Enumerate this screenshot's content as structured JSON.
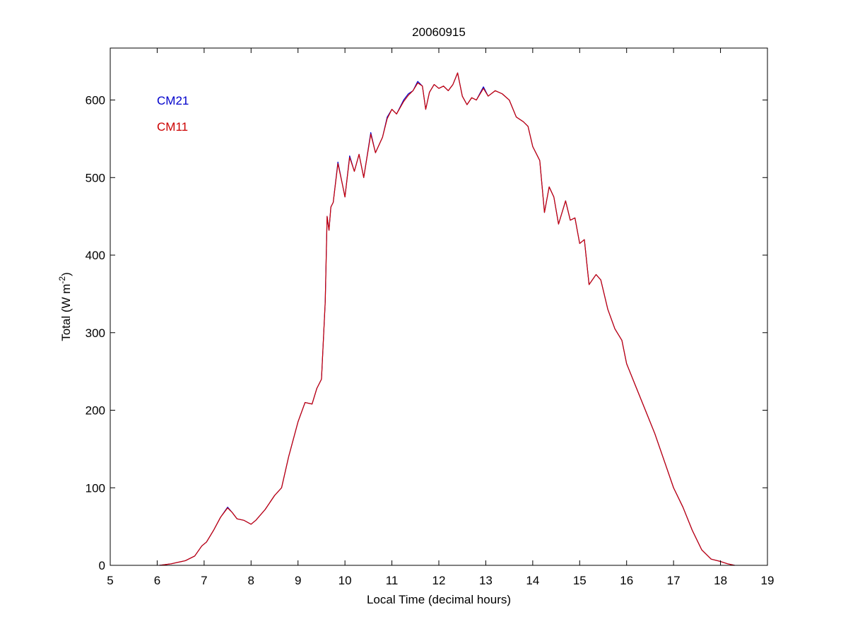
{
  "chart_data": {
    "type": "line",
    "title": "20060915",
    "xlabel": "Local Time (decimal hours)",
    "ylabel_main": "Total (W m",
    "ylabel_sup": "-2",
    "ylabel_close": ")",
    "xlim": [
      5,
      19
    ],
    "ylim": [
      0,
      667
    ],
    "xticks": [
      5,
      6,
      7,
      8,
      9,
      10,
      11,
      12,
      13,
      14,
      15,
      16,
      17,
      18,
      19
    ],
    "yticks": [
      0,
      100,
      200,
      300,
      400,
      500,
      600
    ],
    "grid": false,
    "legend_placement": "top-left",
    "series": [
      {
        "name": "CM21",
        "color": "#0000cc",
        "points": [
          [
            6.05,
            0
          ],
          [
            6.3,
            2
          ],
          [
            6.6,
            6
          ],
          [
            6.8,
            12
          ],
          [
            6.95,
            25
          ],
          [
            7.05,
            30
          ],
          [
            7.2,
            45
          ],
          [
            7.35,
            62
          ],
          [
            7.5,
            75
          ],
          [
            7.6,
            68
          ],
          [
            7.7,
            60
          ],
          [
            7.85,
            58
          ],
          [
            8.0,
            53
          ],
          [
            8.1,
            58
          ],
          [
            8.3,
            72
          ],
          [
            8.5,
            90
          ],
          [
            8.65,
            100
          ],
          [
            8.8,
            140
          ],
          [
            9.0,
            185
          ],
          [
            9.15,
            210
          ],
          [
            9.3,
            208
          ],
          [
            9.4,
            228
          ],
          [
            9.5,
            240
          ],
          [
            9.58,
            340
          ],
          [
            9.62,
            450
          ],
          [
            9.66,
            432
          ],
          [
            9.7,
            462
          ],
          [
            9.75,
            468
          ],
          [
            9.85,
            520
          ],
          [
            9.95,
            490
          ],
          [
            10.0,
            475
          ],
          [
            10.1,
            528
          ],
          [
            10.2,
            508
          ],
          [
            10.3,
            530
          ],
          [
            10.4,
            500
          ],
          [
            10.55,
            558
          ],
          [
            10.65,
            532
          ],
          [
            10.8,
            552
          ],
          [
            10.9,
            578
          ],
          [
            11.0,
            588
          ],
          [
            11.1,
            582
          ],
          [
            11.25,
            600
          ],
          [
            11.35,
            608
          ],
          [
            11.45,
            612
          ],
          [
            11.55,
            624
          ],
          [
            11.65,
            618
          ],
          [
            11.72,
            588
          ],
          [
            11.8,
            610
          ],
          [
            11.9,
            620
          ],
          [
            12.0,
            615
          ],
          [
            12.1,
            618
          ],
          [
            12.2,
            612
          ],
          [
            12.3,
            620
          ],
          [
            12.4,
            635
          ],
          [
            12.5,
            605
          ],
          [
            12.6,
            594
          ],
          [
            12.7,
            603
          ],
          [
            12.8,
            600
          ],
          [
            12.95,
            617
          ],
          [
            13.05,
            605
          ],
          [
            13.2,
            612
          ],
          [
            13.35,
            608
          ],
          [
            13.5,
            600
          ],
          [
            13.65,
            578
          ],
          [
            13.8,
            572
          ],
          [
            13.9,
            566
          ],
          [
            14.0,
            540
          ],
          [
            14.15,
            522
          ],
          [
            14.25,
            455
          ],
          [
            14.35,
            488
          ],
          [
            14.45,
            475
          ],
          [
            14.55,
            440
          ],
          [
            14.7,
            470
          ],
          [
            14.8,
            445
          ],
          [
            14.9,
            448
          ],
          [
            15.0,
            415
          ],
          [
            15.1,
            420
          ],
          [
            15.2,
            362
          ],
          [
            15.35,
            375
          ],
          [
            15.45,
            368
          ],
          [
            15.6,
            330
          ],
          [
            15.75,
            305
          ],
          [
            15.9,
            290
          ],
          [
            16.0,
            260
          ],
          [
            16.2,
            230
          ],
          [
            16.4,
            200
          ],
          [
            16.6,
            170
          ],
          [
            16.8,
            135
          ],
          [
            17.0,
            100
          ],
          [
            17.2,
            75
          ],
          [
            17.4,
            45
          ],
          [
            17.6,
            20
          ],
          [
            17.8,
            8
          ],
          [
            18.0,
            5
          ],
          [
            18.15,
            2
          ],
          [
            18.3,
            0
          ]
        ]
      },
      {
        "name": "CM11",
        "color": "#cc0000",
        "points": [
          [
            6.05,
            0
          ],
          [
            6.3,
            2
          ],
          [
            6.6,
            6
          ],
          [
            6.8,
            12
          ],
          [
            6.95,
            25
          ],
          [
            7.05,
            30
          ],
          [
            7.2,
            45
          ],
          [
            7.35,
            62
          ],
          [
            7.5,
            74
          ],
          [
            7.6,
            68
          ],
          [
            7.7,
            60
          ],
          [
            7.85,
            58
          ],
          [
            8.0,
            53
          ],
          [
            8.1,
            58
          ],
          [
            8.3,
            72
          ],
          [
            8.5,
            90
          ],
          [
            8.65,
            100
          ],
          [
            8.8,
            140
          ],
          [
            9.0,
            185
          ],
          [
            9.15,
            210
          ],
          [
            9.3,
            208
          ],
          [
            9.4,
            228
          ],
          [
            9.5,
            240
          ],
          [
            9.58,
            340
          ],
          [
            9.62,
            450
          ],
          [
            9.66,
            432
          ],
          [
            9.7,
            462
          ],
          [
            9.75,
            468
          ],
          [
            9.85,
            518
          ],
          [
            9.95,
            490
          ],
          [
            10.0,
            475
          ],
          [
            10.1,
            526
          ],
          [
            10.2,
            508
          ],
          [
            10.3,
            530
          ],
          [
            10.4,
            500
          ],
          [
            10.55,
            556
          ],
          [
            10.65,
            532
          ],
          [
            10.8,
            552
          ],
          [
            10.9,
            576
          ],
          [
            11.0,
            588
          ],
          [
            11.1,
            582
          ],
          [
            11.25,
            598
          ],
          [
            11.35,
            606
          ],
          [
            11.45,
            612
          ],
          [
            11.55,
            622
          ],
          [
            11.65,
            618
          ],
          [
            11.72,
            588
          ],
          [
            11.8,
            610
          ],
          [
            11.9,
            620
          ],
          [
            12.0,
            615
          ],
          [
            12.1,
            618
          ],
          [
            12.2,
            612
          ],
          [
            12.3,
            620
          ],
          [
            12.4,
            635
          ],
          [
            12.5,
            605
          ],
          [
            12.6,
            594
          ],
          [
            12.7,
            603
          ],
          [
            12.8,
            600
          ],
          [
            12.95,
            615
          ],
          [
            13.05,
            605
          ],
          [
            13.2,
            612
          ],
          [
            13.35,
            608
          ],
          [
            13.5,
            600
          ],
          [
            13.65,
            578
          ],
          [
            13.8,
            572
          ],
          [
            13.9,
            566
          ],
          [
            14.0,
            540
          ],
          [
            14.15,
            522
          ],
          [
            14.25,
            455
          ],
          [
            14.35,
            488
          ],
          [
            14.45,
            475
          ],
          [
            14.55,
            440
          ],
          [
            14.7,
            470
          ],
          [
            14.8,
            445
          ],
          [
            14.9,
            448
          ],
          [
            15.0,
            415
          ],
          [
            15.1,
            420
          ],
          [
            15.2,
            362
          ],
          [
            15.35,
            375
          ],
          [
            15.45,
            368
          ],
          [
            15.6,
            330
          ],
          [
            15.75,
            305
          ],
          [
            15.9,
            290
          ],
          [
            16.0,
            260
          ],
          [
            16.2,
            230
          ],
          [
            16.4,
            200
          ],
          [
            16.6,
            170
          ],
          [
            16.8,
            135
          ],
          [
            17.0,
            100
          ],
          [
            17.2,
            75
          ],
          [
            17.4,
            45
          ],
          [
            17.6,
            20
          ],
          [
            17.8,
            8
          ],
          [
            18.0,
            5
          ],
          [
            18.15,
            2
          ],
          [
            18.3,
            0
          ]
        ]
      }
    ]
  }
}
